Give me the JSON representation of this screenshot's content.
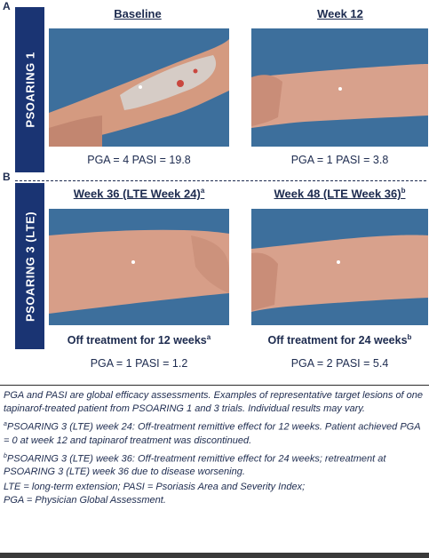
{
  "panel_a": {
    "letter": "A",
    "trial_label": "PSOARING 1",
    "left": {
      "title": "Baseline",
      "scores": "PGA = 4 PASI = 19.8"
    },
    "right": {
      "title": "Week 12",
      "scores": "PGA = 1 PASI = 3.8"
    }
  },
  "panel_b": {
    "letter": "B",
    "trial_label": "PSOARING 3 (LTE)",
    "left": {
      "title": "Week 36 (LTE Week 24)",
      "title_sup": "a",
      "status": "Off treatment for 12 weeks",
      "status_sup": "a",
      "scores": "PGA = 1 PASI = 1.2"
    },
    "right": {
      "title": "Week 48 (LTE Week 36)",
      "title_sup": "b",
      "status": "Off treatment for 24 weeks",
      "status_sup": "b",
      "scores": "PGA = 2 PASI = 5.4"
    }
  },
  "footnotes": {
    "intro": "PGA and PASI are global efficacy assessments. Examples of representative target lesions of one tapinarof-treated patient from PSOARING 1 and 3 trials. Individual results may vary.",
    "note_a_mark": "a",
    "note_a": "PSOARING 3 (LTE) week 24: Off-treatment remittive effect for 12 weeks. Patient achieved PGA = 0 at week 12 and tapinarof treatment was discontinued.",
    "note_b_mark": "b",
    "note_b": "PSOARING 3 (LTE) week 36: Off-treatment remittive effect for 24 weeks; retreatment at PSOARING 3 (LTE) week 36 due to disease worsening.",
    "abbr1": "LTE = long-term extension; PASI = Psoriasis Area and Severity Index;",
    "abbr2": "PGA = Physician Global Assessment."
  },
  "colors": {
    "navy": "#1a3473",
    "photo_bg": "#3c6e9a",
    "skin": "#d9a088",
    "plaque": "#d8d0cc"
  }
}
